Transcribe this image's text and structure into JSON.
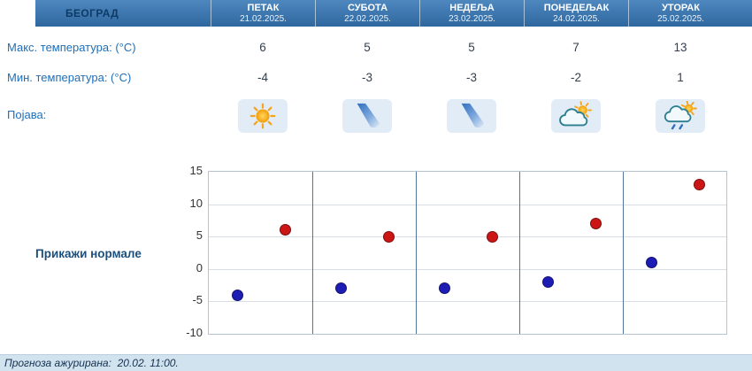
{
  "header": {
    "city": "БЕОГРАД",
    "days": [
      {
        "name": "ПЕТАК",
        "date": "21.02.2025."
      },
      {
        "name": "СУБОТА",
        "date": "22.02.2025."
      },
      {
        "name": "НЕДЕЉА",
        "date": "23.02.2025."
      },
      {
        "name": "ПОНЕДЕЉАК",
        "date": "24.02.2025."
      },
      {
        "name": "УТОРАК",
        "date": "25.02.2025."
      }
    ]
  },
  "table": {
    "max_label": "Макс. температура: (°C)",
    "min_label": "Мин. температура: (°C)",
    "phenomena_label": "Појава:",
    "max_values": [
      "6",
      "5",
      "5",
      "7",
      "13"
    ],
    "min_values": [
      "-4",
      "-3",
      "-3",
      "-2",
      "1"
    ]
  },
  "phenomena": {
    "icons": [
      "sun-icon",
      "clearing-icon",
      "clearing-icon",
      "sun-cloud-icon",
      "rain-sun-cloud-icon"
    ]
  },
  "controls": {
    "show_normals_label": "Прикажи нормале"
  },
  "footer": {
    "updated_text": "Прогноза ажурирана:  20.02. 11:00."
  },
  "colors": {
    "header_blue": "#3c74ad",
    "footer_bg": "#d2e3f0",
    "label_blue": "#1e6fb8"
  },
  "chart_data": {
    "type": "scatter",
    "title": "",
    "xlabel": "",
    "ylabel": "",
    "categories": [
      "ПЕТАК",
      "СУБОТА",
      "НЕДЕЉА",
      "ПОНЕДЕЉАК",
      "УТОРАК"
    ],
    "series": [
      {
        "name": "Макс. температура (°C)",
        "color": "#cc1616",
        "values": [
          6,
          5,
          5,
          7,
          13
        ]
      },
      {
        "name": "Мин. температура (°C)",
        "color": "#1d1db5",
        "values": [
          -4,
          -3,
          -3,
          -2,
          1
        ]
      }
    ],
    "ylim": [
      -10,
      15
    ],
    "yticks": [
      15,
      10,
      5,
      0,
      -5,
      -10
    ],
    "grid": true,
    "legend_position": "none"
  }
}
